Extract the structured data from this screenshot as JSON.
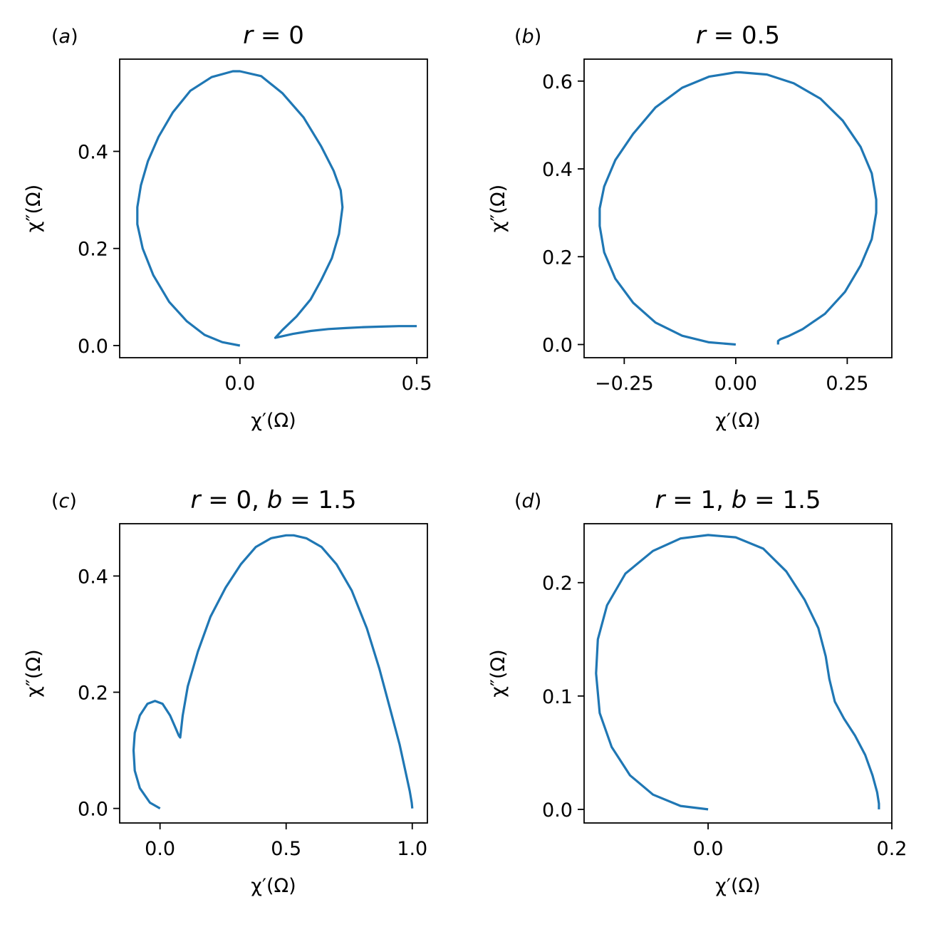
{
  "colors": {
    "line": "#1f77b4",
    "axes": "#000000",
    "background": "#ffffff"
  },
  "chart_data": [
    {
      "panel": "(a)",
      "type": "line",
      "title": "r = 0",
      "xlabel": "χ′(Ω)",
      "ylabel": "χ″(Ω)",
      "xlim": [
        -0.34,
        0.53
      ],
      "ylim": [
        -0.025,
        0.59
      ],
      "xticks": [
        0.0,
        0.5
      ],
      "xtick_labels": [
        "0.0",
        "0.5"
      ],
      "yticks": [
        0.0,
        0.2,
        0.4
      ],
      "ytick_labels": [
        "0.0",
        "0.2",
        "0.4"
      ],
      "grid": false,
      "series": [
        {
          "x": [
            0.0,
            -0.05,
            -0.1,
            -0.15,
            -0.2,
            -0.245,
            -0.275,
            -0.29,
            -0.29,
            -0.28,
            -0.26,
            -0.23,
            -0.19,
            -0.14,
            -0.08,
            -0.02,
            0.0,
            0.06,
            0.12,
            0.18,
            0.23,
            0.265,
            0.285,
            0.29,
            0.28,
            0.26,
            0.23,
            0.2,
            0.16,
            0.12,
            0.1,
            0.15,
            0.2,
            0.25,
            0.3,
            0.35,
            0.4,
            0.45,
            0.5
          ],
          "y": [
            0.0,
            0.007,
            0.022,
            0.05,
            0.09,
            0.145,
            0.2,
            0.25,
            0.285,
            0.33,
            0.38,
            0.43,
            0.48,
            0.525,
            0.553,
            0.565,
            0.565,
            0.555,
            0.52,
            0.47,
            0.41,
            0.36,
            0.32,
            0.285,
            0.23,
            0.18,
            0.135,
            0.095,
            0.06,
            0.032,
            0.016,
            0.024,
            0.03,
            0.034,
            0.036,
            0.038,
            0.039,
            0.04,
            0.04
          ]
        }
      ]
    },
    {
      "panel": "(b)",
      "type": "line",
      "title": "r = 0.5",
      "xlabel": "χ′(Ω)",
      "ylabel": "χ″(Ω)",
      "xlim": [
        -0.34,
        0.35
      ],
      "ylim": [
        -0.03,
        0.65
      ],
      "xticks": [
        -0.25,
        0.0,
        0.25
      ],
      "xtick_labels": [
        "−0.25",
        "0.00",
        "0.25"
      ],
      "yticks": [
        0.0,
        0.2,
        0.4,
        0.6
      ],
      "ytick_labels": [
        "0.0",
        "0.2",
        "0.4",
        "0.6"
      ],
      "grid": false,
      "series": [
        {
          "x": [
            0.0,
            -0.06,
            -0.12,
            -0.18,
            -0.23,
            -0.27,
            -0.295,
            -0.305,
            -0.305,
            -0.295,
            -0.27,
            -0.23,
            -0.18,
            -0.12,
            -0.06,
            0.0,
            0.01,
            0.07,
            0.13,
            0.19,
            0.24,
            0.28,
            0.305,
            0.315,
            0.315,
            0.305,
            0.28,
            0.245,
            0.2,
            0.15,
            0.12,
            0.1,
            0.095,
            0.095
          ],
          "y": [
            0.0,
            0.005,
            0.02,
            0.05,
            0.095,
            0.15,
            0.21,
            0.27,
            0.31,
            0.36,
            0.42,
            0.48,
            0.54,
            0.585,
            0.61,
            0.62,
            0.62,
            0.615,
            0.595,
            0.56,
            0.51,
            0.45,
            0.39,
            0.33,
            0.3,
            0.24,
            0.18,
            0.12,
            0.07,
            0.035,
            0.02,
            0.012,
            0.008,
            0.0
          ]
        }
      ]
    },
    {
      "panel": "(c)",
      "type": "line",
      "title": "r = 0, b = 1.5",
      "xlabel": "χ′(Ω)",
      "ylabel": "χ″(Ω)",
      "xlim": [
        -0.16,
        1.06
      ],
      "ylim": [
        -0.025,
        0.49
      ],
      "xticks": [
        0.0,
        0.5,
        1.0
      ],
      "xtick_labels": [
        "0.0",
        "0.5",
        "1.0"
      ],
      "yticks": [
        0.0,
        0.2,
        0.4
      ],
      "ytick_labels": [
        "0.0",
        "0.2",
        "0.4"
      ],
      "grid": false,
      "series": [
        {
          "x": [
            0.0,
            -0.04,
            -0.08,
            -0.1,
            -0.105,
            -0.1,
            -0.08,
            -0.05,
            -0.02,
            0.01,
            0.04,
            0.06,
            0.075,
            0.08,
            0.09,
            0.11,
            0.15,
            0.2,
            0.26,
            0.32,
            0.38,
            0.44,
            0.5,
            0.53,
            0.58,
            0.64,
            0.7,
            0.76,
            0.82,
            0.87,
            0.91,
            0.95,
            0.975,
            0.99,
            0.998,
            1.0
          ],
          "y": [
            0.0,
            0.01,
            0.035,
            0.065,
            0.1,
            0.13,
            0.16,
            0.18,
            0.185,
            0.18,
            0.16,
            0.14,
            0.125,
            0.122,
            0.16,
            0.21,
            0.27,
            0.33,
            0.38,
            0.42,
            0.45,
            0.465,
            0.47,
            0.47,
            0.465,
            0.45,
            0.42,
            0.375,
            0.31,
            0.24,
            0.175,
            0.11,
            0.06,
            0.03,
            0.01,
            0.0
          ]
        }
      ]
    },
    {
      "panel": "(d)",
      "type": "line",
      "title": "r = 1, b = 1.5",
      "xlabel": "χ′(Ω)",
      "ylabel": "χ″(Ω)",
      "xlim": [
        -0.135,
        0.2
      ],
      "ylim": [
        -0.012,
        0.252
      ],
      "xticks": [
        0.0,
        0.2
      ],
      "xtick_labels": [
        "0.0",
        "0.2"
      ],
      "yticks": [
        0.0,
        0.1,
        0.2
      ],
      "ytick_labels": [
        "0.0",
        "0.1",
        "0.2"
      ],
      "grid": false,
      "series": [
        {
          "x": [
            0.0,
            -0.03,
            -0.06,
            -0.085,
            -0.105,
            -0.118,
            -0.122,
            -0.12,
            -0.11,
            -0.09,
            -0.06,
            -0.03,
            0.0,
            0.03,
            0.06,
            0.085,
            0.105,
            0.12,
            0.128,
            0.132,
            0.138,
            0.148,
            0.16,
            0.171,
            0.179,
            0.184,
            0.186,
            0.186
          ],
          "y": [
            0.0,
            0.003,
            0.013,
            0.03,
            0.055,
            0.085,
            0.12,
            0.15,
            0.18,
            0.208,
            0.228,
            0.239,
            0.242,
            0.24,
            0.23,
            0.21,
            0.185,
            0.16,
            0.135,
            0.115,
            0.095,
            0.08,
            0.065,
            0.048,
            0.03,
            0.015,
            0.005,
            0.0
          ]
        }
      ]
    }
  ]
}
